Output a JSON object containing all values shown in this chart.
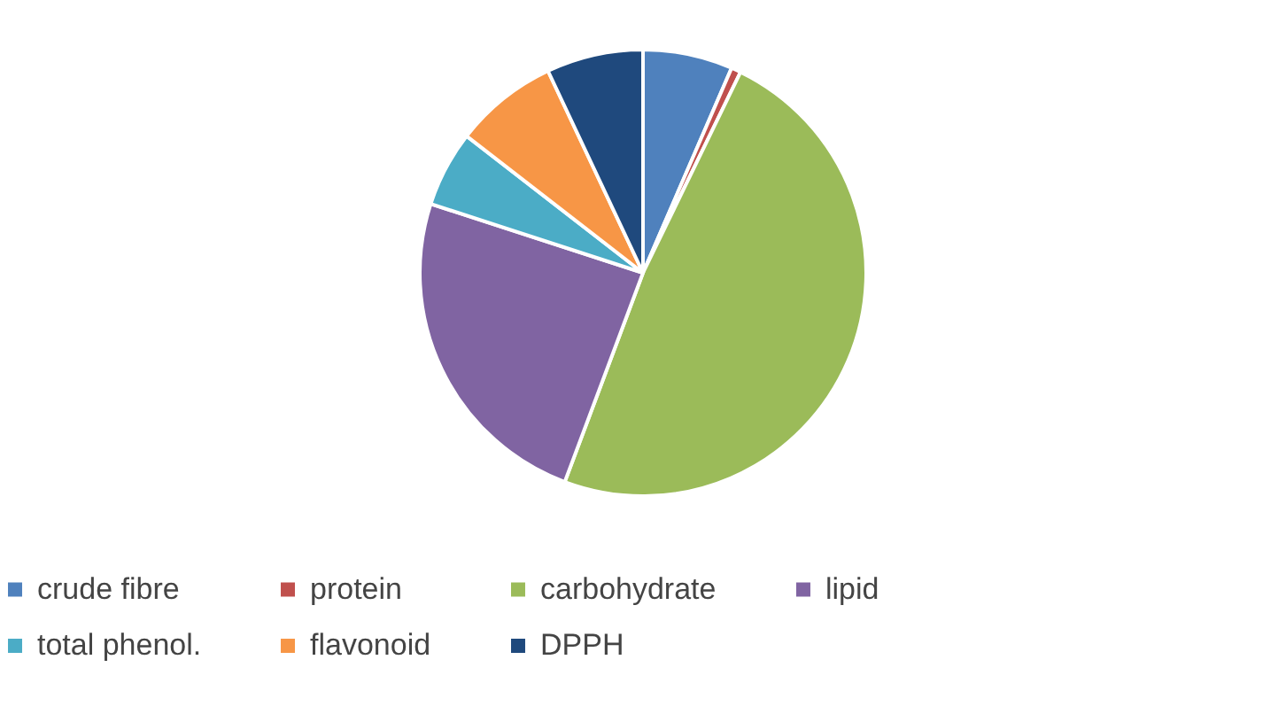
{
  "chart_data": {
    "type": "pie",
    "categories": [
      "crude fibre",
      "protein",
      "carbohydrate",
      "lipid",
      "total phenol.",
      "flavonoid",
      "DPPH"
    ],
    "values": [
      6.5,
      0.7,
      48.5,
      24.3,
      5.5,
      7.5,
      7
    ],
    "colors": [
      "#4f81bd",
      "#c0504d",
      "#9bbb59",
      "#8064a2",
      "#4bacc6",
      "#f79646",
      "#1f497d"
    ],
    "legend": "bottom"
  }
}
